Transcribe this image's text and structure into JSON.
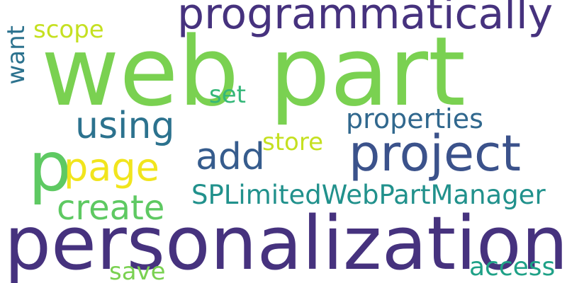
{
  "words": {
    "web_part": "web part",
    "personalization": "personalization",
    "programmatically": "programmatically",
    "project": "project",
    "p": "p",
    "page": "page",
    "add": "add",
    "using": "using",
    "create": "create",
    "properties": "properties",
    "splimited": "SPLimitedWebPartManager",
    "scope": "scope",
    "set": "set",
    "store": "store",
    "want": "want",
    "save": "save",
    "access": "access"
  },
  "colors": {
    "web_part": "#7ad151",
    "personalization": "#46327e",
    "programmatically": "#46327e",
    "project": "#3b528b",
    "p": "#5ec962",
    "page": "#f1e51d",
    "add": "#365c8d",
    "using": "#2c728e",
    "create": "#5ec962",
    "properties": "#31688e",
    "splimited": "#21918c",
    "scope": "#c5e021",
    "set": "#35b779",
    "store": "#c5e021",
    "want": "#2c728e",
    "save": "#7ad151",
    "access": "#1fa187"
  }
}
